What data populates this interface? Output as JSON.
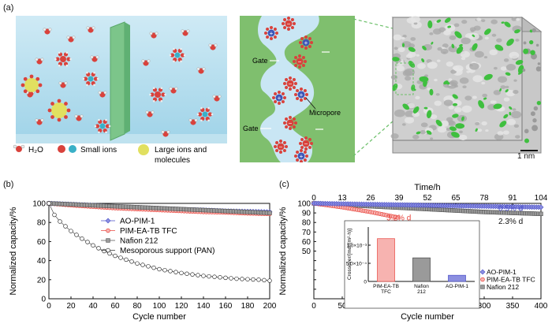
{
  "panel_labels": {
    "a": "(a)",
    "b": "(b)",
    "c": "(c)"
  },
  "legend_a": {
    "h2o": "H₂O",
    "small_ions": "Small ions",
    "large_ions_line1": "Large ions and",
    "large_ions_line2": "molecules"
  },
  "schematic": {
    "gate": "Gate",
    "micropore": "Micropore"
  },
  "scale_bar": "1 nm",
  "colors": {
    "blue": "#4a4fc8",
    "red": "#e8473f",
    "gray": "#555555",
    "open": "#333333"
  },
  "chart_data": [
    {
      "type": "line",
      "xlabel": "Cycle number",
      "ylabel": "Normalized capacity/%",
      "xlim": [
        0,
        200
      ],
      "ylim": [
        0,
        100
      ],
      "xticks": [
        0,
        20,
        40,
        60,
        80,
        100,
        120,
        140,
        160,
        180,
        200
      ],
      "yticks": [
        0,
        20,
        40,
        60,
        80,
        100
      ],
      "legend": "top-right",
      "series": [
        {
          "name": "AO-PIM-1",
          "x": [
            0,
            20,
            40,
            60,
            80,
            100,
            120,
            140,
            160,
            180,
            200
          ],
          "y": [
            100,
            99,
            98,
            96.5,
            95.5,
            94.5,
            93.5,
            93,
            92,
            91.5,
            91
          ]
        },
        {
          "name": "PIM-EA-TB TFC",
          "x": [
            0,
            20,
            40,
            60,
            80,
            100,
            120,
            140,
            160,
            180,
            200
          ],
          "y": [
            100,
            98,
            96.5,
            95,
            94,
            93,
            92,
            91,
            90.5,
            89.5,
            89
          ]
        },
        {
          "name": "Nafion 212",
          "x": [
            0,
            20,
            40,
            60,
            80,
            100,
            120,
            140,
            160,
            180,
            200
          ],
          "y": [
            100,
            99,
            98,
            97,
            96,
            95,
            94,
            93,
            92,
            91,
            90
          ]
        },
        {
          "name": "Mesoporous support (PAN)",
          "x": [
            0,
            5,
            10,
            20,
            30,
            40,
            50,
            60,
            70,
            80,
            90,
            100,
            110,
            120,
            130,
            140,
            150,
            160,
            170,
            180,
            190,
            200
          ],
          "y": [
            100,
            88,
            81,
            71,
            63,
            56,
            50,
            45,
            41,
            37,
            34,
            31,
            29,
            27,
            25.5,
            24,
            23,
            22,
            21,
            20.5,
            20,
            19
          ]
        }
      ]
    },
    {
      "type": "line",
      "xlabel": "Cycle number",
      "ylabel": "Normalized capacity/%",
      "x2label": "Time/h",
      "xlim": [
        0,
        400
      ],
      "ylim": [
        0,
        100
      ],
      "xticks": [
        0,
        50,
        100,
        150,
        200,
        250,
        300,
        350,
        400
      ],
      "x2ticks": [
        0,
        13,
        26,
        39,
        52,
        65,
        78,
        91,
        104
      ],
      "yticks": [
        0,
        10,
        20,
        30,
        40,
        50,
        60,
        70,
        80,
        90,
        100
      ],
      "legend": "bottom-right",
      "annotations": [
        "0.5% d",
        "3.2% d",
        "2.3% d"
      ],
      "series": [
        {
          "name": "AO-PIM-1",
          "x": [
            0,
            50,
            100,
            150,
            200,
            250,
            300,
            350,
            400
          ],
          "y": [
            100,
            99.5,
            99,
            98.5,
            98,
            97.5,
            97,
            96.5,
            96
          ]
        },
        {
          "name": "PIM-EA-TB TFC",
          "x": [
            0,
            25,
            50,
            75,
            100,
            125,
            150
          ],
          "y": [
            100,
            98,
            96,
            93.5,
            91,
            88,
            85
          ]
        },
        {
          "name": "Nafion 212",
          "x": [
            0,
            50,
            100,
            150,
            200,
            250,
            300,
            350,
            400
          ],
          "y": [
            100,
            98.5,
            97,
            95.5,
            94,
            92.5,
            91,
            90,
            89
          ]
        }
      ]
    },
    {
      "type": "bar",
      "ylabel": "Crossover/[mol/(m²·h)]",
      "categories": [
        "PIM-EA-TB TFC",
        "Nafion 212",
        "AO-PIM-1"
      ],
      "values": [
        0.00118,
        0.00065,
        0.00017
      ],
      "ylim": [
        0,
        0.0015
      ],
      "yticks": [
        0,
        0.0005,
        0.001
      ],
      "ytick_labels": [
        "0",
        "5.0×10⁻⁴",
        "1.0×10⁻³"
      ]
    }
  ]
}
